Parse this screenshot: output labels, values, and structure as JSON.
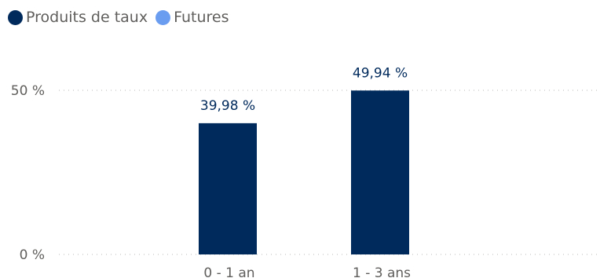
{
  "legend": [
    {
      "label": "Produits de taux",
      "color": "#002a5c"
    },
    {
      "label": "Futures",
      "color": "#6a9cf0"
    }
  ],
  "chart_data": {
    "type": "bar",
    "categories": [
      "0 - 1 an",
      "1 - 3 ans"
    ],
    "series": [
      {
        "name": "Produits de taux",
        "values": [
          39.98,
          49.94
        ],
        "labels": [
          "39,98 %",
          "49,94 %"
        ],
        "color": "#002a5c"
      },
      {
        "name": "Futures",
        "values": [
          null,
          null
        ],
        "labels": [
          "",
          ""
        ],
        "color": "#6a9cf0"
      }
    ],
    "y_ticks": [
      0,
      50
    ],
    "y_tick_labels": [
      "0 %",
      "50 %"
    ],
    "ylim": [
      0,
      50
    ],
    "grid": true,
    "legend_position": "top-left",
    "title": "",
    "xlabel": "",
    "ylabel": ""
  }
}
